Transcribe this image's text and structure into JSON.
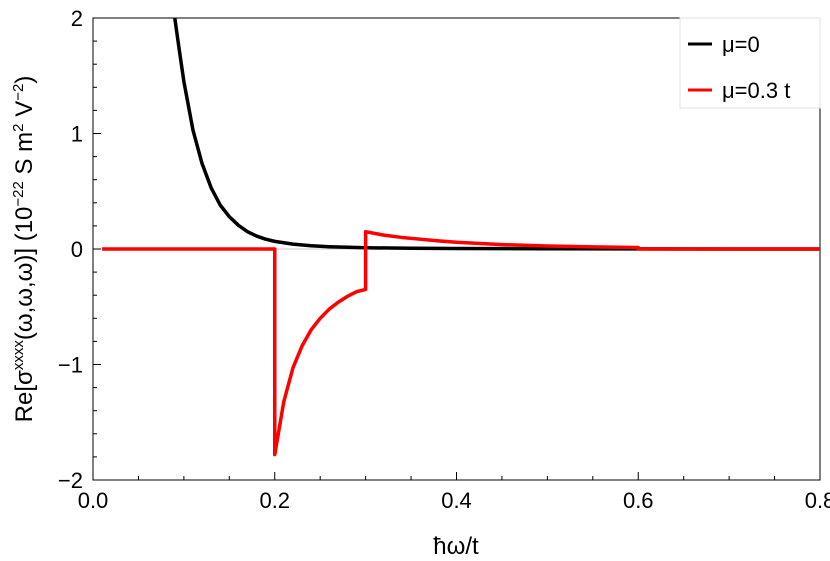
{
  "chart_data": {
    "type": "line",
    "xlabel": "ħω/t",
    "ylabel": {
      "prefix": "Re[σ",
      "sup": "xxxx",
      "args": "(ω,ω,ω)] (10",
      "exp": "−22",
      "units": " S m",
      "m_exp": "2",
      "v": " V",
      "v_exp": "−2",
      "close": ")"
    },
    "xlim": [
      0.0,
      0.8
    ],
    "ylim": [
      -2,
      2
    ],
    "x_ticks": [
      {
        "value": 0.0,
        "label": "0.0"
      },
      {
        "value": 0.2,
        "label": "0.2"
      },
      {
        "value": 0.4,
        "label": "0.4"
      },
      {
        "value": 0.6,
        "label": "0.6"
      },
      {
        "value": 0.8,
        "label": "0.8"
      }
    ],
    "y_ticks": [
      {
        "value": -2,
        "label": "−2"
      },
      {
        "value": -1,
        "label": "−1"
      },
      {
        "value": 0,
        "label": "0"
      },
      {
        "value": 1,
        "label": "1"
      },
      {
        "value": 2,
        "label": "2"
      }
    ],
    "legend_position": "top-right",
    "series": [
      {
        "name": "μ=0",
        "color": "#000000",
        "points": [
          [
            0.09,
            2.0
          ],
          [
            0.095,
            1.72
          ],
          [
            0.1,
            1.45
          ],
          [
            0.11,
            1.03
          ],
          [
            0.12,
            0.74
          ],
          [
            0.13,
            0.53
          ],
          [
            0.14,
            0.38
          ],
          [
            0.15,
            0.28
          ],
          [
            0.16,
            0.205
          ],
          [
            0.17,
            0.15
          ],
          [
            0.18,
            0.112
          ],
          [
            0.19,
            0.085
          ],
          [
            0.2,
            0.066
          ],
          [
            0.22,
            0.042
          ],
          [
            0.24,
            0.028
          ],
          [
            0.26,
            0.02
          ],
          [
            0.28,
            0.015
          ],
          [
            0.3,
            0.011
          ],
          [
            0.35,
            0.006
          ],
          [
            0.4,
            0.004
          ],
          [
            0.5,
            0.002
          ],
          [
            0.6,
            0.001
          ],
          [
            0.7,
            0.0005
          ],
          [
            0.8,
            0.0003
          ]
        ]
      },
      {
        "name": "μ=0.3 t",
        "color": "#ff0000",
        "points": [
          [
            0.01,
            0.0
          ],
          [
            0.2,
            0.0
          ],
          [
            0.2,
            -1.78
          ],
          [
            0.21,
            -1.32
          ],
          [
            0.22,
            -1.03
          ],
          [
            0.23,
            -0.84
          ],
          [
            0.24,
            -0.7
          ],
          [
            0.25,
            -0.6
          ],
          [
            0.26,
            -0.52
          ],
          [
            0.27,
            -0.46
          ],
          [
            0.28,
            -0.41
          ],
          [
            0.29,
            -0.37
          ],
          [
            0.3,
            -0.35
          ],
          [
            0.3,
            0.15
          ],
          [
            0.32,
            0.12
          ],
          [
            0.34,
            0.1
          ],
          [
            0.36,
            0.085
          ],
          [
            0.38,
            0.07
          ],
          [
            0.4,
            0.058
          ],
          [
            0.45,
            0.038
          ],
          [
            0.5,
            0.026
          ],
          [
            0.55,
            0.018
          ],
          [
            0.6,
            0.013
          ],
          [
            0.6,
            0.0
          ],
          [
            0.8,
            0.0
          ]
        ]
      }
    ]
  }
}
